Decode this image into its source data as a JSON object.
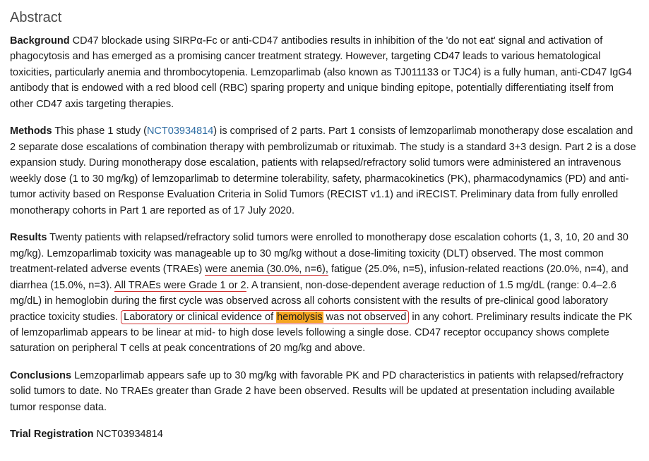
{
  "heading": "Abstract",
  "background": {
    "label": "Background",
    "text": " CD47 blockade using SIRPα-Fc or anti-CD47 antibodies results in inhibition of the 'do not eat' signal and activation of phagocytosis and has emerged as a promising cancer treatment strategy. However, targeting CD47 leads to various hematological toxicities, particularly anemia and thrombocytopenia. Lemzoparlimab (also known as TJ011133 or TJC4) is a fully human, anti-CD47 IgG4 antibody that is endowed with a red blood cell (RBC) sparing property and unique binding epitope, potentially differentiating itself from other CD47 axis targeting therapies."
  },
  "methods": {
    "label": "Methods",
    "pre_link": " This phase 1 study (",
    "link_text": "NCT03934814",
    "post_link": ") is comprised of 2 parts. Part 1 consists of lemzoparlimab monotherapy dose escalation and 2 separate dose escalations of combination therapy with pembrolizumab or rituximab. The study is a standard 3+3 design. Part 2 is a dose expansion study. During monotherapy dose escalation, patients with relapsed/refractory solid tumors were administered an intravenous weekly dose (1 to 30 mg/kg) of lemzoparlimab to determine tolerability, safety, pharmacokinetics (PK), pharmacodynamics (PD) and anti-tumor activity based on Response Evaluation Criteria in Solid Tumors (RECIST v1.1) and iRECIST. Preliminary data from fully enrolled monotherapy cohorts in Part 1 are reported as of 17 July 2020."
  },
  "results": {
    "label": "Results",
    "seg1": " Twenty patients with relapsed/refractory solid tumors were enrolled to monotherapy dose escalation cohorts (1, 3, 10, 20 and 30 mg/kg). Lemzoparlimab toxicity was manageable up to 30 mg/kg without a dose-limiting toxicity (DLT) observed. The most common treatment-related adverse events (TRAEs) ",
    "under1": "were anemia (30.0%, n=6),",
    "seg2": " fatigue (25.0%, n=5), infusion-related reactions (20.0%, n=4), and diarrhea (15.0%, n=3). ",
    "under2": "All TRAEs were Grade 1 or 2",
    "seg3": ". A transient, non-dose-dependent average reduction of 1.5 mg/dL (range: 0.4–2.6 mg/dL) in hemoglobin during the first cycle was observed across all cohorts consistent with the results of pre-clinical good laboratory practice toxicity studies. ",
    "box_pre": "Laboratory or clinical evidence of ",
    "box_hl": "hemolysis",
    "box_post": " was not observed",
    "seg4": " in any cohort. Preliminary results indicate the PK of lemzoparlimab appears to be linear at mid- to high dose levels following a single dose. CD47 receptor occupancy shows complete saturation on peripheral T cells at peak concentrations of 20 mg/kg and above."
  },
  "conclusions": {
    "label": "Conclusions",
    "text": " Lemzoparlimab appears safe up to 30 mg/kg with favorable PK and PD characteristics in patients with relapsed/refractory solid tumors to date. No TRAEs greater than Grade 2 have been observed. Results will be updated at presentation including available tumor response data."
  },
  "trial": {
    "label": "Trial Registration",
    "text": " NCT03934814"
  },
  "colors": {
    "link": "#2e6da4",
    "underline": "#d03030",
    "highlight": "#f5a623",
    "text": "#1a1a1a",
    "heading": "#4a4a4a"
  }
}
